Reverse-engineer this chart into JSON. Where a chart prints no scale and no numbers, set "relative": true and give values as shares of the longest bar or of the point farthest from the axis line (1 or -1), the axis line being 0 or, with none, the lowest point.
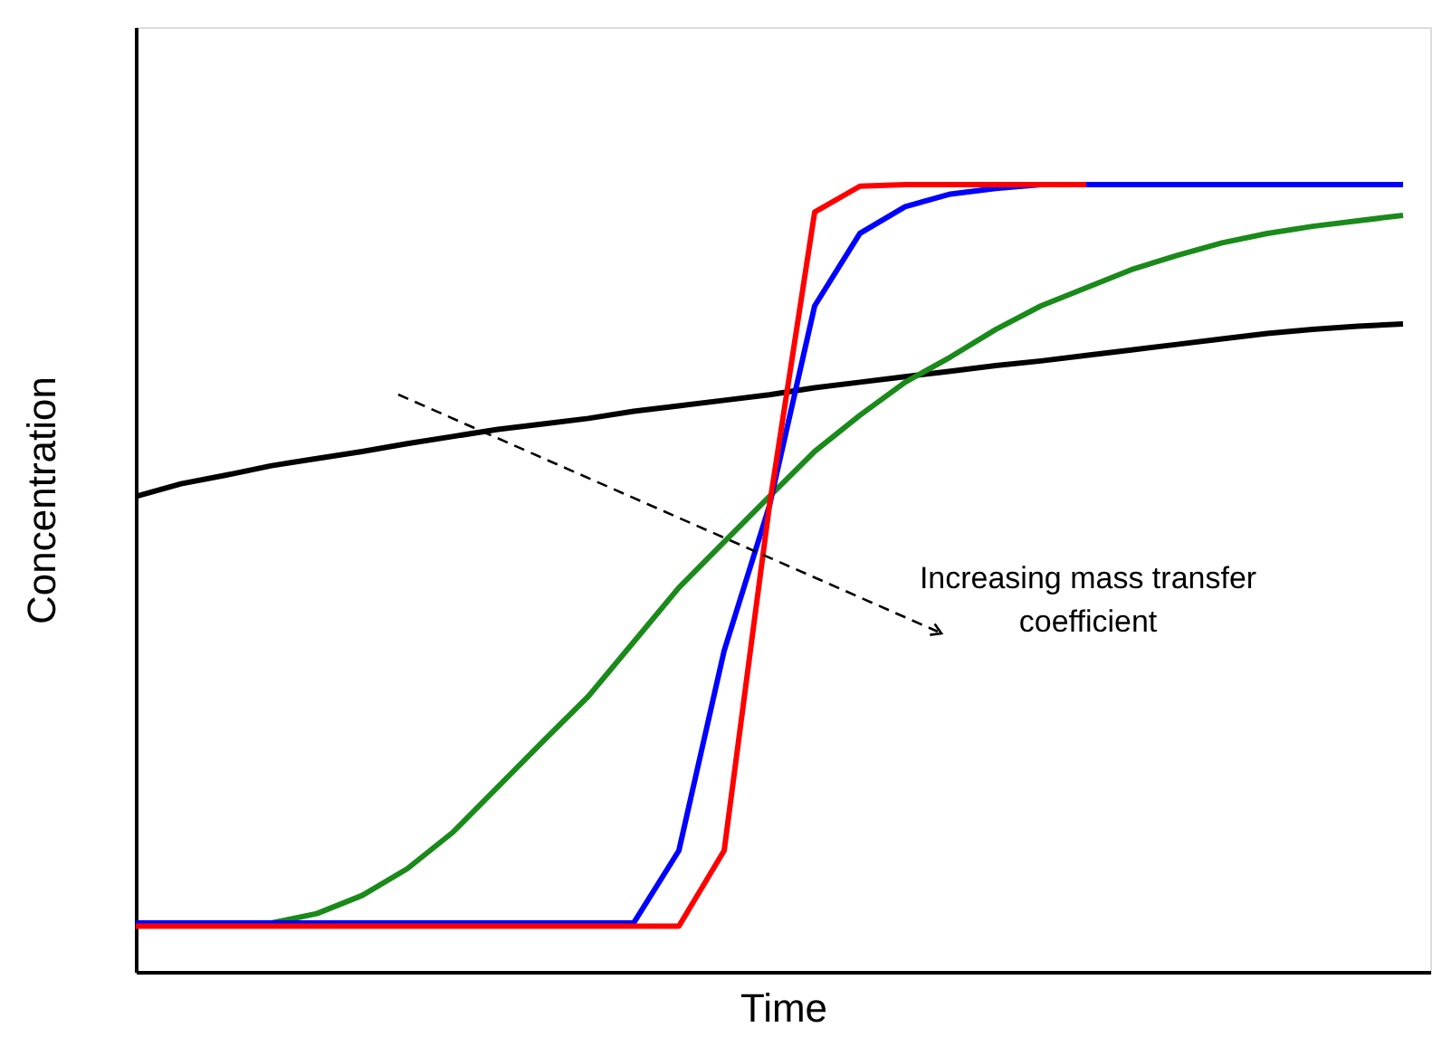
{
  "chart_data": {
    "type": "line",
    "relative": true,
    "xlabel": "Time",
    "ylabel": "Concentration",
    "grid": false,
    "tick_labels": false,
    "line_style": "solid",
    "marker": "none",
    "categories": [
      null,
      null,
      null,
      null,
      null,
      null,
      null,
      null,
      null,
      null,
      null,
      null,
      null,
      null,
      null,
      null,
      null,
      null,
      null,
      null,
      null,
      null,
      null,
      null,
      null,
      null,
      null,
      null,
      null
    ],
    "series": [
      {
        "color": "#000000",
        "values": [
          0.604,
          0.62,
          0.631,
          0.643,
          0.652,
          0.661,
          0.671,
          0.68,
          0.689,
          0.696,
          0.703,
          0.712,
          0.719,
          0.726,
          0.733,
          0.742,
          0.749,
          0.756,
          0.763,
          0.77,
          0.776,
          0.783,
          0.79,
          0.797,
          0.804,
          0.811,
          0.816,
          0.82,
          0.823
        ]
      },
      {
        "color": "#1a8a1a",
        "values": [
          null,
          null,
          null,
          0.062,
          0.074,
          0.097,
          0.131,
          0.177,
          0.235,
          0.293,
          0.35,
          0.419,
          0.488,
          0.546,
          0.604,
          0.661,
          0.707,
          0.749,
          0.781,
          0.816,
          0.846,
          0.869,
          0.892,
          0.91,
          0.926,
          0.938,
          0.947,
          0.954,
          0.961
        ]
      },
      {
        "color": "#0000ff",
        "values": [
          0.062,
          0.062,
          0.062,
          0.062,
          0.062,
          0.062,
          0.062,
          0.062,
          0.062,
          0.062,
          0.062,
          0.062,
          0.154,
          0.408,
          0.592,
          0.846,
          0.938,
          0.972,
          0.988,
          0.995,
          1.0,
          1.0,
          1.0,
          1.0,
          1.0,
          1.0,
          1.0,
          1.0,
          1.0
        ]
      },
      {
        "color": "#ff0000",
        "values": [
          0.058,
          0.058,
          0.058,
          0.058,
          0.058,
          0.058,
          0.058,
          0.058,
          0.058,
          0.058,
          0.058,
          0.058,
          0.058,
          0.154,
          0.592,
          0.965,
          0.998,
          1.0,
          1.0,
          1.0,
          1.0,
          1.0,
          null,
          null,
          null,
          null,
          null,
          null,
          null
        ]
      }
    ],
    "annotations": [
      "Increasing mass transfer coefficient"
    ]
  }
}
